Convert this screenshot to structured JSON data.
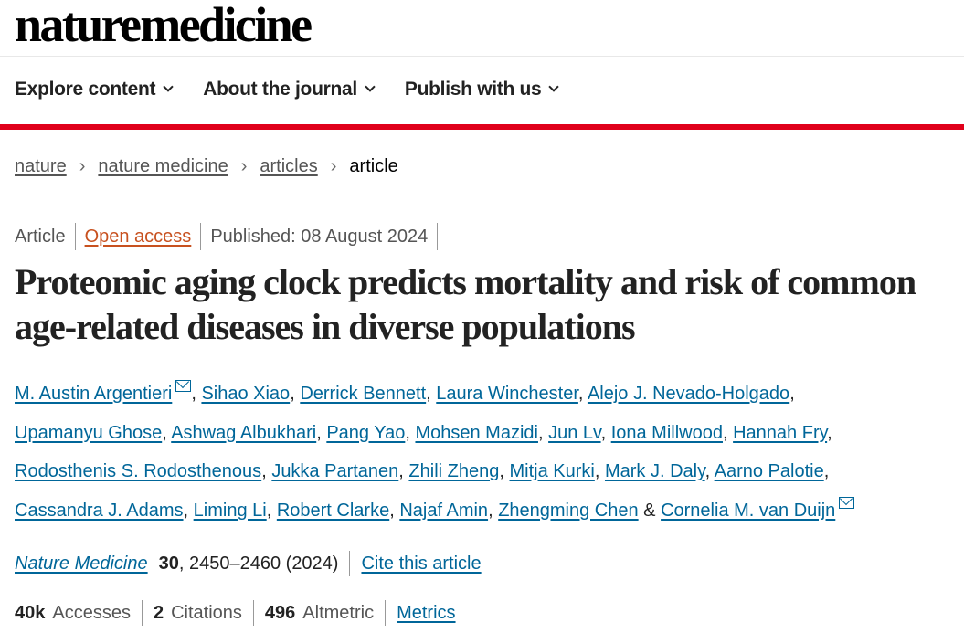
{
  "logo": "nature medicine",
  "nav": [
    {
      "label": "Explore content"
    },
    {
      "label": "About the journal"
    },
    {
      "label": "Publish with us"
    }
  ],
  "breadcrumb": [
    {
      "label": "nature"
    },
    {
      "label": "nature medicine"
    },
    {
      "label": "articles"
    },
    {
      "label": "article"
    }
  ],
  "meta": {
    "type": "Article",
    "access": "Open access",
    "published": "Published: 08 August 2024"
  },
  "title": "Proteomic aging clock predicts mortality and risk of common age-related diseases in diverse populations",
  "authors": [
    [
      "M. Austin Argentieri",
      "Sihao Xiao",
      "Derrick Bennett",
      "Laura Winchester",
      "Alejo J. Nevado-Holgado"
    ],
    [
      "Upamanyu Ghose",
      "Ashwag Albukhari",
      "Pang Yao",
      "Mohsen Mazidi",
      "Jun Lv",
      "Iona Millwood",
      "Hannah Fry"
    ],
    [
      "Rodosthenis S. Rodosthenous",
      "Jukka Partanen",
      "Zhili Zheng",
      "Mitja Kurki",
      "Mark J. Daly",
      "Aarno Palotie"
    ],
    [
      "Cassandra J. Adams",
      "Liming Li",
      "Robert Clarke",
      "Najaf Amin",
      "Zhengming Chen",
      "Cornelia M. van Duijn"
    ]
  ],
  "author_separator": ", ",
  "author_last_separator": " & ",
  "citation": {
    "journal": "Nature Medicine",
    "volume": "30",
    "pages": ", 2450–2460 (2024)",
    "cite_label": "Cite this article"
  },
  "metrics": {
    "accesses_value": "40k",
    "accesses_label": "Accesses",
    "citations_value": "2",
    "citations_label": "Citations",
    "altmetric_value": "496",
    "altmetric_label": "Altmetric",
    "metrics_link": "Metrics"
  },
  "colors": {
    "accent": "#e0001b",
    "link": "#006699",
    "open_access": "#c8511f"
  }
}
